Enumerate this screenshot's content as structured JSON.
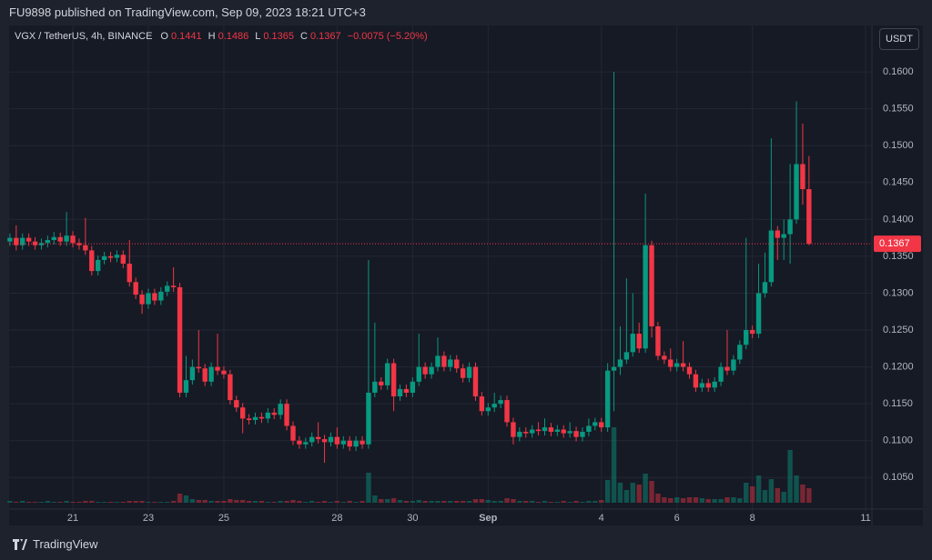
{
  "header": {
    "publisher": "FU9898 published on TradingView.com, Sep 09, 2023 18:21 UTC+3"
  },
  "footer": {
    "brand": "TradingView"
  },
  "chart_data": {
    "type": "candlestick",
    "title": "VGX / TetherUS, 4h, BINANCE",
    "ohlc_letters": [
      "O",
      "H",
      "L",
      "C"
    ],
    "change_label": "−0.0075 (−5.20%)",
    "currency": "USDT",
    "up_color": "#089981",
    "down_color": "#f23645",
    "grid": true,
    "categories": [
      null,
      null,
      null,
      null,
      null,
      null,
      null,
      null,
      null,
      null,
      "21",
      null,
      null,
      null,
      null,
      null,
      null,
      null,
      null,
      null,
      null,
      null,
      "23",
      null,
      null,
      null,
      null,
      null,
      null,
      null,
      null,
      null,
      null,
      null,
      "25",
      null,
      null,
      null,
      null,
      null,
      null,
      null,
      null,
      null,
      null,
      null,
      null,
      null,
      null,
      null,
      null,
      null,
      "28",
      null,
      null,
      null,
      null,
      null,
      null,
      null,
      null,
      null,
      null,
      null,
      "30",
      null,
      null,
      null,
      null,
      null,
      null,
      null,
      null,
      null,
      null,
      null,
      "Sep",
      null,
      null,
      null,
      null,
      null,
      null,
      null,
      null,
      null,
      null,
      null,
      null,
      null,
      null,
      null,
      null,
      null,
      "4",
      null,
      null,
      null,
      null,
      null,
      null,
      null,
      null,
      null,
      null,
      null,
      "6",
      null,
      null,
      null,
      null,
      null,
      null,
      null,
      null,
      null,
      null,
      null,
      "8",
      null,
      null,
      null,
      null,
      null,
      null,
      null,
      null,
      null,
      null,
      null,
      null,
      null,
      null,
      null,
      null,
      null,
      "11"
    ],
    "open": [
      0.137,
      0.1375,
      0.1365,
      0.1375,
      0.137,
      0.1365,
      0.1368,
      0.1372,
      0.1376,
      0.137,
      0.1378,
      0.1368,
      0.1365,
      0.1358,
      0.133,
      0.1345,
      0.135,
      0.1348,
      0.1352,
      0.134,
      0.1315,
      0.1298,
      0.1285,
      0.13,
      0.129,
      0.1302,
      0.131,
      0.1308,
      0.1165,
      0.1182,
      0.12,
      0.1198,
      0.118,
      0.12,
      0.1195,
      0.119,
      0.1155,
      0.1145,
      0.113,
      0.1128,
      0.1132,
      0.113,
      0.1138,
      0.1135,
      0.115,
      0.112,
      0.11,
      0.1095,
      0.1098,
      0.1105,
      0.1102,
      0.1098,
      0.1105,
      0.1095,
      0.11,
      0.1092,
      0.11,
      0.1095,
      0.1165,
      0.118,
      0.1175,
      0.1205,
      0.116,
      0.117,
      0.1165,
      0.118,
      0.12,
      0.119,
      0.12,
      0.1215,
      0.12,
      0.121,
      0.1198,
      0.1185,
      0.12,
      0.116,
      0.114,
      0.1145,
      0.115,
      0.1155,
      0.1125,
      0.1105,
      0.1112,
      0.111,
      0.1115,
      0.1113,
      0.1118,
      0.1112,
      0.1115,
      0.111,
      0.1113,
      0.1105,
      0.1112,
      0.112,
      0.1125,
      0.1118,
      0.1195,
      0.12,
      0.121,
      0.122,
      0.1245,
      0.1225,
      0.1365,
      0.1255,
      0.1215,
      0.121,
      0.12,
      0.1205,
      0.12,
      0.119,
      0.1172,
      0.1178,
      0.1172,
      0.118,
      0.12,
      0.1195,
      0.121,
      0.123,
      0.125,
      0.1245,
      0.13,
      0.1315,
      0.1385,
      0.1375,
      0.138,
      0.14,
      0.1475,
      0.1441,
      null,
      null,
      null,
      null,
      null,
      null,
      null,
      null,
      null
    ],
    "high": [
      0.1381,
      0.1392,
      0.1381,
      0.1381,
      0.1376,
      0.1374,
      0.1378,
      0.1383,
      0.1382,
      0.141,
      0.1384,
      0.1374,
      0.1402,
      0.1364,
      0.1351,
      0.1356,
      0.1356,
      0.1358,
      0.1358,
      0.1372,
      0.1321,
      0.1304,
      0.1306,
      0.1306,
      0.1308,
      0.1316,
      0.1335,
      0.1314,
      0.1215,
      0.121,
      0.125,
      0.1204,
      0.1206,
      0.1245,
      0.1201,
      0.1196,
      0.1161,
      0.1151,
      0.1136,
      0.1138,
      0.1138,
      0.1144,
      0.1144,
      0.1156,
      0.1156,
      0.1126,
      0.1106,
      0.1104,
      0.1111,
      0.1125,
      0.1108,
      0.1111,
      0.1118,
      0.1106,
      0.1106,
      0.1106,
      0.1106,
      0.1345,
      0.126,
      0.1186,
      0.1211,
      0.1211,
      0.1176,
      0.1176,
      0.1186,
      0.1245,
      0.1206,
      0.1206,
      0.124,
      0.1221,
      0.1216,
      0.1216,
      0.1204,
      0.1206,
      0.1206,
      0.1166,
      0.1151,
      0.1165,
      0.1161,
      0.1161,
      0.1131,
      0.1118,
      0.1118,
      0.1121,
      0.1125,
      0.113,
      0.1124,
      0.1121,
      0.1121,
      0.1125,
      0.1119,
      0.1118,
      0.113,
      0.1131,
      0.1131,
      0.1205,
      0.16,
      0.1255,
      0.132,
      0.13,
      0.126,
      0.1435,
      0.1371,
      0.1261,
      0.1221,
      0.1225,
      0.1211,
      0.1235,
      0.1206,
      0.1196,
      0.1184,
      0.1184,
      0.1186,
      0.1206,
      0.125,
      0.1216,
      0.1236,
      0.1375,
      0.1256,
      0.134,
      0.1355,
      0.151,
      0.1391,
      0.14,
      0.1475,
      0.156,
      0.153,
      0.1486,
      null,
      null,
      null,
      null,
      null,
      null,
      null,
      null,
      null
    ],
    "low": [
      0.1364,
      0.1358,
      0.1359,
      0.1364,
      0.1359,
      0.1359,
      0.1362,
      0.1366,
      0.1364,
      0.1364,
      0.1362,
      0.1359,
      0.1352,
      0.1324,
      0.1324,
      0.1339,
      0.1342,
      0.1342,
      0.1334,
      0.1309,
      0.1292,
      0.1272,
      0.1279,
      0.1284,
      0.1284,
      0.1296,
      0.1302,
      0.1159,
      0.1159,
      0.1176,
      0.1192,
      0.1174,
      0.1174,
      0.1189,
      0.1184,
      0.1149,
      0.1139,
      0.111,
      0.1122,
      0.1122,
      0.1124,
      0.1124,
      0.1129,
      0.1129,
      0.1114,
      0.1094,
      0.1089,
      0.1089,
      0.1092,
      0.1096,
      0.107,
      0.1092,
      0.1089,
      0.1089,
      0.1086,
      0.1086,
      0.1089,
      0.1089,
      0.1159,
      0.1169,
      0.1169,
      0.114,
      0.1154,
      0.1159,
      0.1159,
      0.1174,
      0.1184,
      0.1184,
      0.1194,
      0.1194,
      0.1194,
      0.1192,
      0.1179,
      0.1179,
      0.1154,
      0.1134,
      0.1134,
      0.1139,
      0.1144,
      0.1119,
      0.1095,
      0.1099,
      0.1104,
      0.1104,
      0.1107,
      0.1107,
      0.1106,
      0.1106,
      0.1104,
      0.1104,
      0.1099,
      0.1099,
      0.1106,
      0.1114,
      0.1112,
      0.1112,
      0.114,
      0.1189,
      0.1204,
      0.1214,
      0.1219,
      0.1219,
      0.124,
      0.1209,
      0.1204,
      0.1194,
      0.1194,
      0.1194,
      0.1184,
      0.1166,
      0.1166,
      0.1166,
      0.1166,
      0.1174,
      0.1189,
      0.1189,
      0.1204,
      0.1224,
      0.1239,
      0.1239,
      0.1294,
      0.1309,
      0.1345,
      0.1345,
      0.134,
      0.1394,
      0.142,
      0.1365,
      null,
      null,
      null,
      null,
      null,
      null,
      null,
      null,
      null
    ],
    "close": [
      0.1375,
      0.1365,
      0.1375,
      0.137,
      0.1365,
      0.1368,
      0.1372,
      0.1376,
      0.137,
      0.1378,
      0.1368,
      0.1365,
      0.1358,
      0.133,
      0.1345,
      0.135,
      0.1348,
      0.1352,
      0.134,
      0.1315,
      0.1298,
      0.1285,
      0.13,
      0.129,
      0.1302,
      0.131,
      0.1308,
      0.1165,
      0.1182,
      0.12,
      0.1198,
      0.118,
      0.12,
      0.1195,
      0.119,
      0.1155,
      0.1145,
      0.113,
      0.1128,
      0.1132,
      0.113,
      0.1138,
      0.1135,
      0.115,
      0.112,
      0.11,
      0.1095,
      0.1098,
      0.1105,
      0.1102,
      0.1098,
      0.1105,
      0.1095,
      0.11,
      0.1092,
      0.11,
      0.1095,
      0.1165,
      0.118,
      0.1175,
      0.1205,
      0.116,
      0.117,
      0.1165,
      0.118,
      0.12,
      0.119,
      0.12,
      0.1215,
      0.12,
      0.121,
      0.1198,
      0.1185,
      0.12,
      0.116,
      0.114,
      0.1145,
      0.115,
      0.1155,
      0.1125,
      0.1105,
      0.1112,
      0.111,
      0.1115,
      0.1113,
      0.1118,
      0.1112,
      0.1115,
      0.111,
      0.1113,
      0.1105,
      0.1112,
      0.112,
      0.1125,
      0.1118,
      0.1195,
      0.12,
      0.121,
      0.122,
      0.1245,
      0.1225,
      0.1365,
      0.1255,
      0.1215,
      0.121,
      0.12,
      0.1205,
      0.12,
      0.119,
      0.1172,
      0.1178,
      0.1172,
      0.118,
      0.12,
      0.1195,
      0.121,
      0.123,
      0.125,
      0.1245,
      0.13,
      0.1315,
      0.1385,
      0.1375,
      0.138,
      0.14,
      0.1475,
      0.1441,
      0.1367,
      null,
      null,
      null,
      null,
      null,
      null,
      null,
      null,
      null
    ],
    "volume": [
      2,
      1,
      2,
      1,
      1,
      1,
      2,
      1,
      1,
      2,
      1,
      1,
      2,
      2,
      1,
      1,
      1,
      1,
      1,
      2,
      2,
      2,
      1,
      1,
      1,
      1,
      2,
      10,
      8,
      4,
      3,
      3,
      2,
      2,
      2,
      4,
      3,
      3,
      2,
      2,
      2,
      1,
      1,
      2,
      2,
      3,
      2,
      1,
      2,
      1,
      2,
      1,
      2,
      1,
      2,
      1,
      2,
      33,
      8,
      4,
      4,
      5,
      3,
      2,
      2,
      3,
      2,
      2,
      2,
      2,
      2,
      2,
      2,
      2,
      4,
      4,
      3,
      2,
      2,
      5,
      4,
      2,
      2,
      2,
      1,
      2,
      1,
      1,
      2,
      1,
      2,
      1,
      2,
      2,
      3,
      25,
      83,
      22,
      14,
      22,
      20,
      32,
      24,
      10,
      6,
      5,
      6,
      5,
      6,
      6,
      5,
      4,
      4,
      4,
      6,
      6,
      5,
      22,
      18,
      30,
      14,
      26,
      16,
      12,
      58,
      30,
      20,
      16,
      null,
      null,
      null,
      null,
      null,
      null,
      null,
      null,
      null
    ],
    "ylim": [
      0.0985,
      0.1663
    ],
    "yticks": [
      {
        "value": 0.105,
        "label": "0.1050"
      },
      {
        "value": 0.11,
        "label": "0.1100"
      },
      {
        "value": 0.115,
        "label": "0.1150"
      },
      {
        "value": 0.12,
        "label": "0.1200"
      },
      {
        "value": 0.125,
        "label": "0.1250"
      },
      {
        "value": 0.13,
        "label": "0.1300"
      },
      {
        "value": 0.135,
        "label": "0.1350"
      },
      {
        "value": 0.14,
        "label": "0.1400"
      },
      {
        "value": 0.145,
        "label": "0.1450"
      },
      {
        "value": 0.15,
        "label": "0.1500"
      },
      {
        "value": 0.155,
        "label": "0.1550"
      },
      {
        "value": 0.16,
        "label": "0.1600"
      }
    ]
  }
}
